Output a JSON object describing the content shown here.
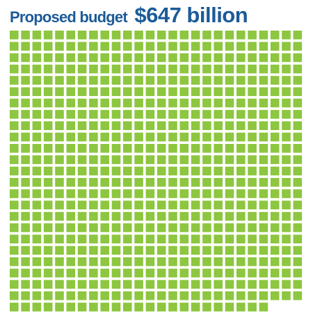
{
  "chart_data": {
    "type": "waffle",
    "title": "Proposed budget",
    "values": [
      647
    ],
    "value_labels": [
      "$647 billion"
    ],
    "color": "#8dc63f"
  }
}
